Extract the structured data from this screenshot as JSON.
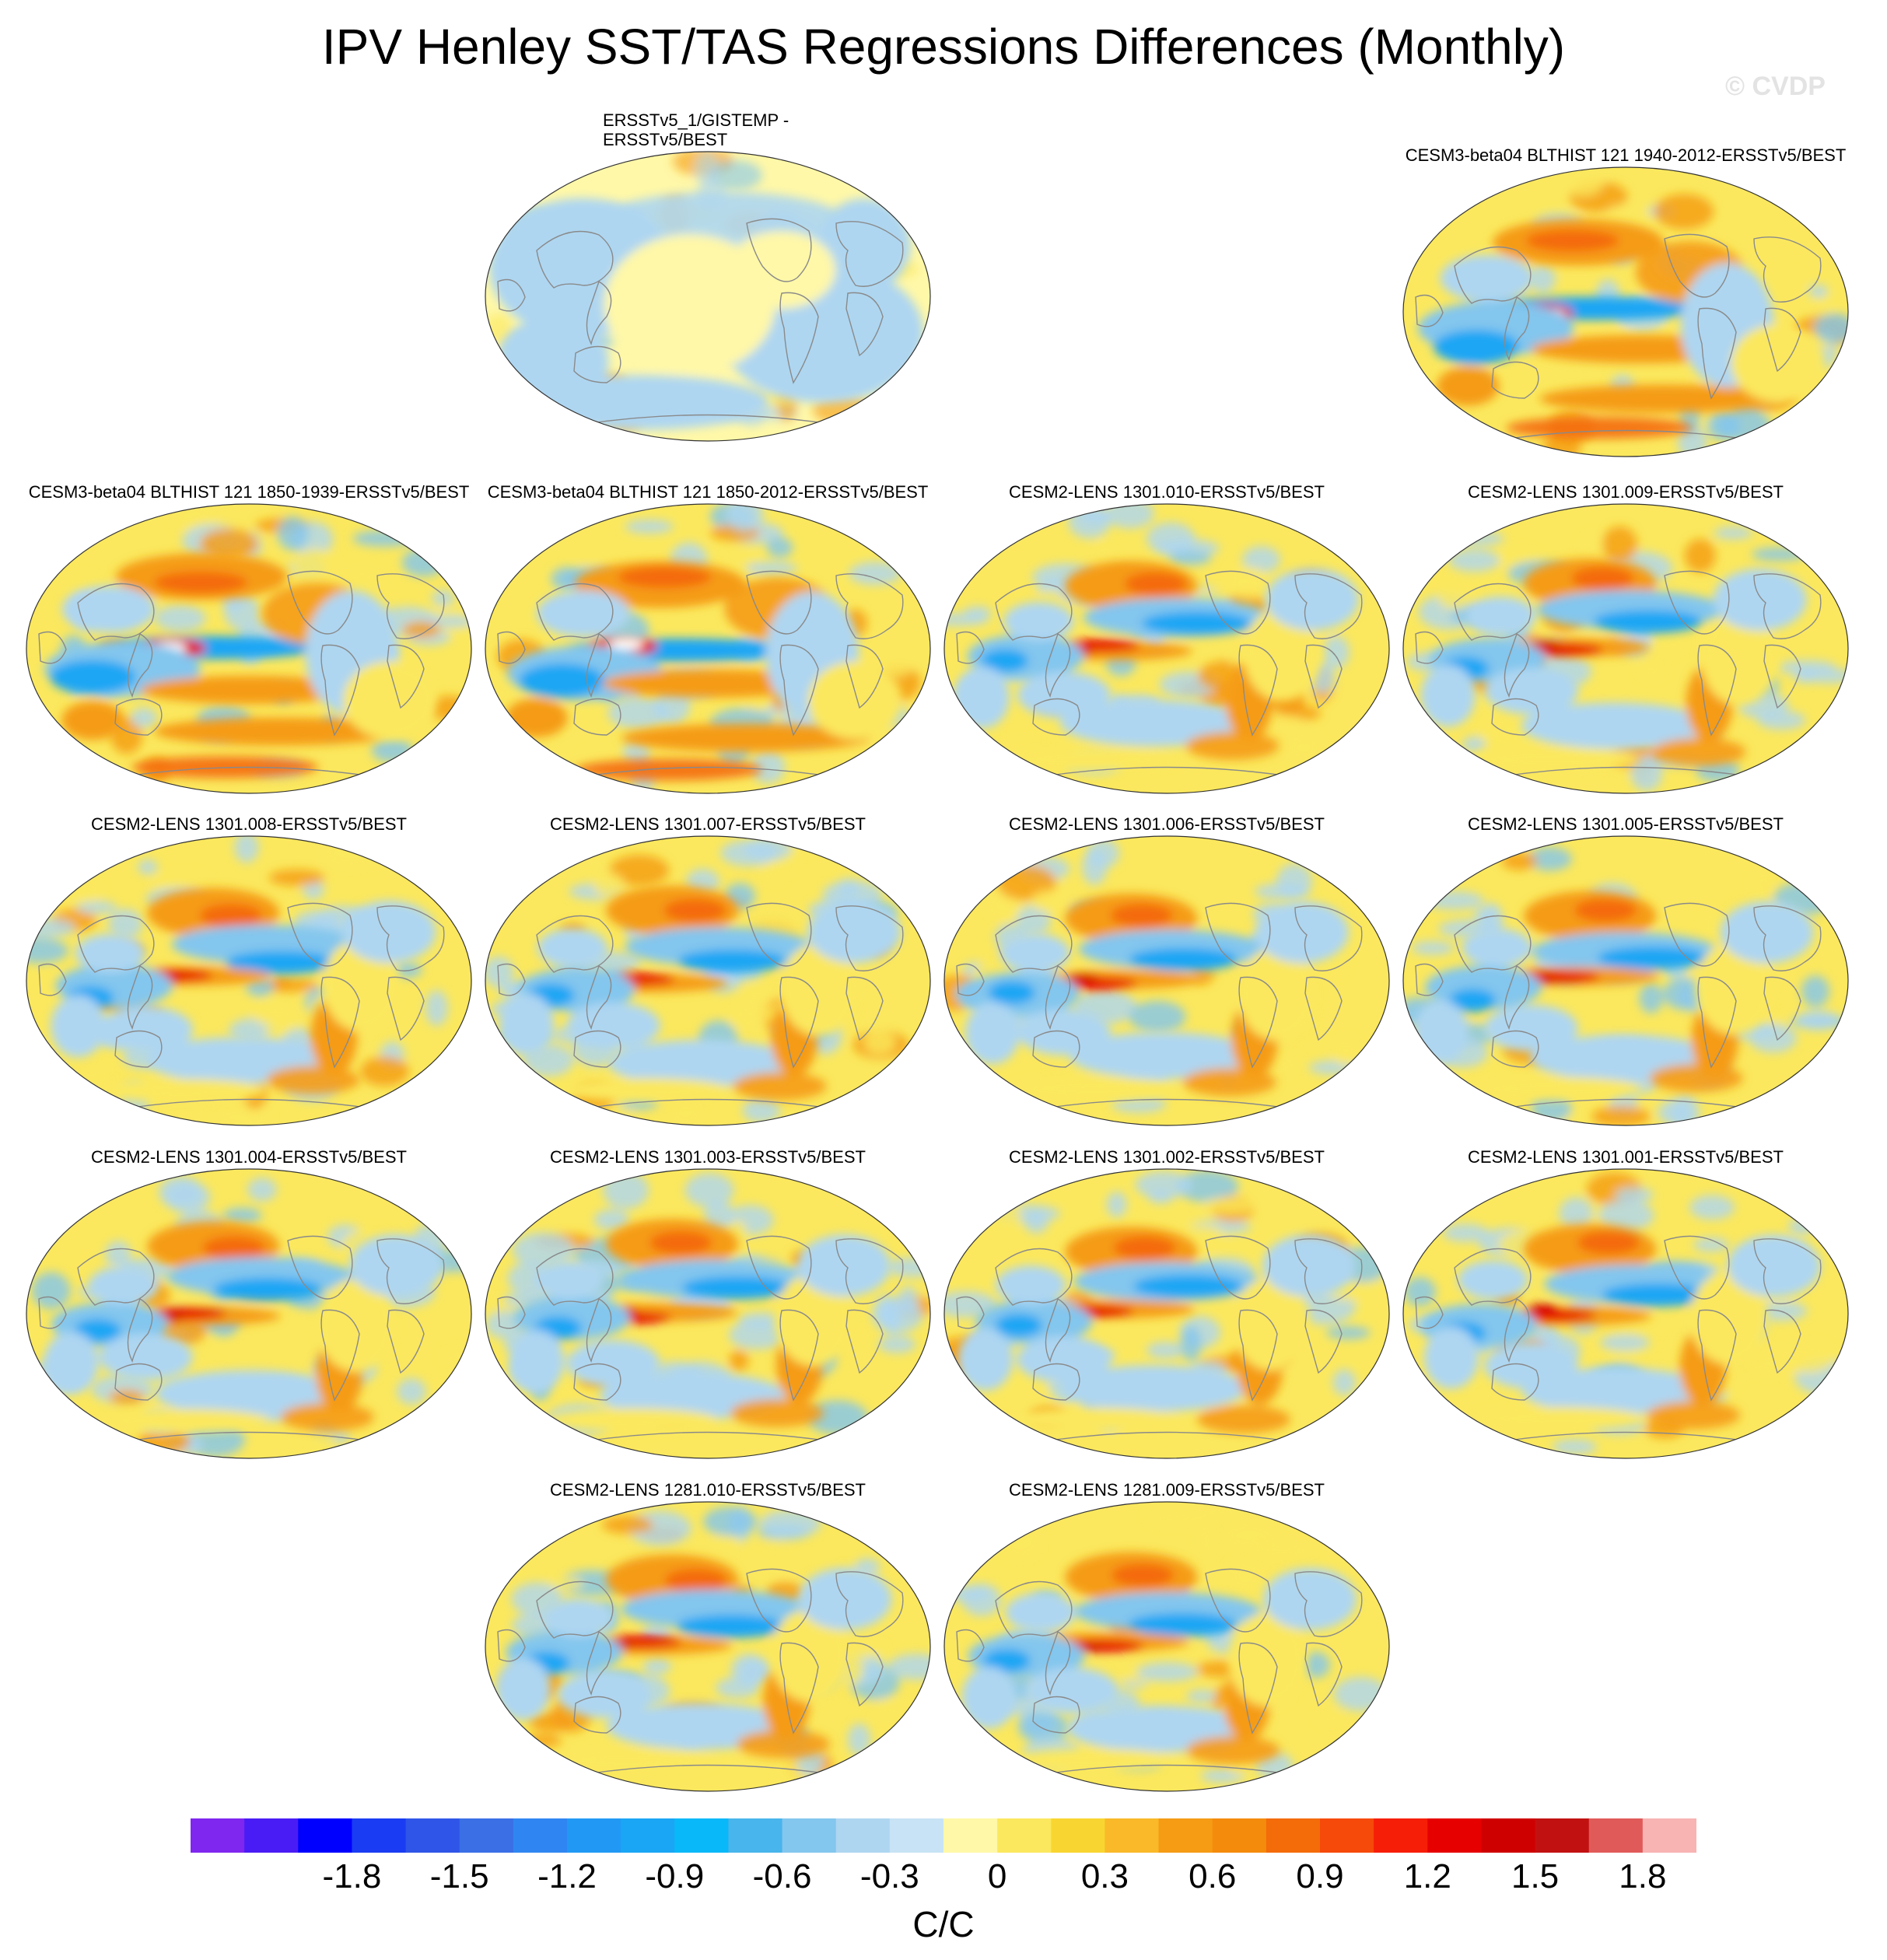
{
  "title": "IPV Henley SST/TAS Regressions Differences (Monthly)",
  "watermark": "© CVDP",
  "colorbar": {
    "colors": [
      "#7f26ef",
      "#4a1cf5",
      "#0000ff",
      "#1a3cf2",
      "#2f55e8",
      "#3a6fe6",
      "#2f86f2",
      "#2199f4",
      "#1aa6f4",
      "#08b8f8",
      "#48b5ec",
      "#83c6ee",
      "#aed6f1",
      "#c7e3f5",
      "#fff8a8",
      "#fbe85e",
      "#f9d531",
      "#f9b928",
      "#f59b14",
      "#f58b0c",
      "#f46b09",
      "#f64a0a",
      "#f61e06",
      "#e60000",
      "#cf0000",
      "#c21111",
      "#e15a5a",
      "#f8b3b3"
    ],
    "tick_labels": [
      "-1.8",
      "-1.5",
      "-1.2",
      "-0.9",
      "-0.6",
      "-0.3",
      "0",
      "0.3",
      "0.6",
      "0.9",
      "1.2",
      "1.5",
      "1.8"
    ],
    "units": "C/C"
  },
  "panels": [
    {
      "label": "ERSSTv5_1/GISTEMP - ERSSTv5/BEST",
      "pattern": "obs"
    },
    {
      "label": "CESM3-beta04 BLTHIST 121 1940-2012-ERSSTv5/BEST",
      "pattern": "strong"
    },
    {
      "label": "CESM3-beta04 BLTHIST 121 1850-1939-ERSSTv5/BEST",
      "pattern": "strong"
    },
    {
      "label": "CESM3-beta04 BLTHIST 121 1850-2012-ERSSTv5/BEST",
      "pattern": "strong"
    },
    {
      "label": "CESM2-LENS 1301.010-ERSSTv5/BEST",
      "pattern": "ipo"
    },
    {
      "label": "CESM2-LENS 1301.009-ERSSTv5/BEST",
      "pattern": "ipo"
    },
    {
      "label": "CESM2-LENS 1301.008-ERSSTv5/BEST",
      "pattern": "ipo"
    },
    {
      "label": "CESM2-LENS 1301.007-ERSSTv5/BEST",
      "pattern": "ipo"
    },
    {
      "label": "CESM2-LENS 1301.006-ERSSTv5/BEST",
      "pattern": "ipo"
    },
    {
      "label": "CESM2-LENS 1301.005-ERSSTv5/BEST",
      "pattern": "ipo"
    },
    {
      "label": "CESM2-LENS 1301.004-ERSSTv5/BEST",
      "pattern": "ipo"
    },
    {
      "label": "CESM2-LENS 1301.003-ERSSTv5/BEST",
      "pattern": "ipo"
    },
    {
      "label": "CESM2-LENS 1301.002-ERSSTv5/BEST",
      "pattern": "ipo"
    },
    {
      "label": "CESM2-LENS 1301.001-ERSSTv5/BEST",
      "pattern": "ipo"
    },
    {
      "label": "CESM2-LENS 1281.010-ERSSTv5/BEST",
      "pattern": "ipo"
    },
    {
      "label": "CESM2-LENS 1281.009-ERSSTv5/BEST",
      "pattern": "ipo"
    }
  ]
}
